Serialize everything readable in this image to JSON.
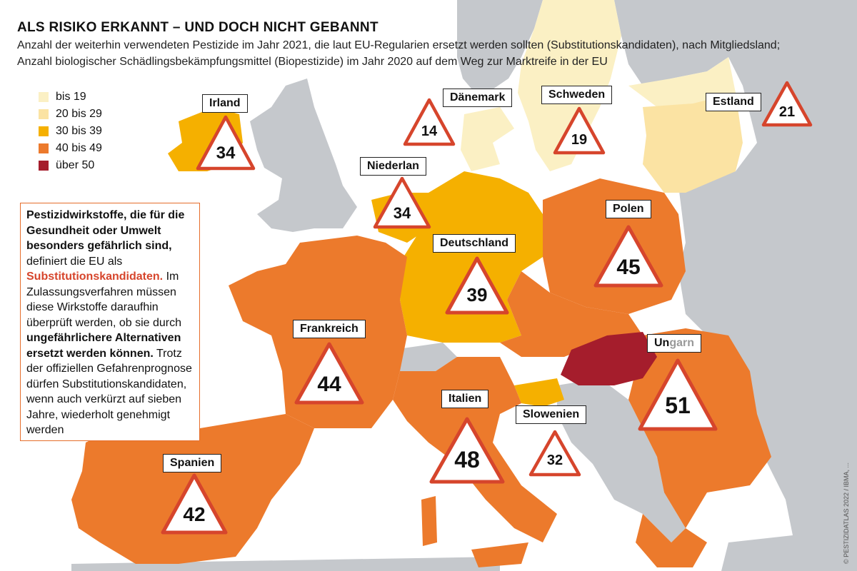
{
  "title": "ALS RISIKO ERKANNT – UND DOCH NICHT GEBANNT",
  "subtitle": "Anzahl der weiterhin verwendeten Pestizide im Jahr 2021, die laut EU-Regularien ersetzt werden sollten (Substitutionskandidaten), nach Mitgliedsland; Anzahl biologischer Schädlingsbekämpfungsmittel (Biopestizide) im Jahr 2020 auf dem Weg zur Marktreife in der EU",
  "legend": [
    {
      "label": "bis 19",
      "color": "#fbf0c4"
    },
    {
      "label": "20 bis 29",
      "color": "#fbe3a3"
    },
    {
      "label": "30 bis 39",
      "color": "#f5b000"
    },
    {
      "label": "40 bis 49",
      "color": "#ec7a2c"
    },
    {
      "label": "über 50",
      "color": "#a51d2c"
    }
  ],
  "infobox": {
    "bold_intro": "Pestizidwirkstoffe, die für die Gesundheit oder Umwelt besonders gefährlich sind,",
    "text_defines": "definiert die EU als",
    "highlight": "Substitutionskandidaten.",
    "text_procedure": "Im Zulassungsverfahren müssen diese Wirkstoffe daraufhin überprüft werden, ob sie durch",
    "bold_alternatives": "ungefährlichere Alternativen ersetzt werden können.",
    "text_end": "Trotz der offiziellen Gefahrenprognose dürfen Substitutionskandidaten, wenn auch verkürzt auf sieben Jahre, wiederholt genehmigt werden"
  },
  "countries": [
    {
      "key": "irland",
      "name": "Irland",
      "value": 34
    },
    {
      "key": "daenemark",
      "name": "Dänemark",
      "value": 14
    },
    {
      "key": "schweden",
      "name": "Schweden",
      "value": 19
    },
    {
      "key": "estland",
      "name": "Estland",
      "value": 21
    },
    {
      "key": "niederlande",
      "name": "Niederlan",
      "value": 34
    },
    {
      "key": "polen",
      "name": "Polen",
      "value": 45
    },
    {
      "key": "deutschland",
      "name": "Deutschland",
      "value": 39
    },
    {
      "key": "frankreich",
      "name": "Frankreich",
      "value": 44
    },
    {
      "key": "ungarn",
      "name_dark": "Un",
      "name_light": "garn",
      "value": 51
    },
    {
      "key": "italien",
      "name": "Italien",
      "value": 48
    },
    {
      "key": "slowenien",
      "name": "Slowenien",
      "value": 32
    },
    {
      "key": "spanien",
      "name": "Spanien",
      "value": 42
    }
  ],
  "colors": {
    "nonmember": "#c5c8cc",
    "tier_lowest": "#fbf0c4",
    "tier_low": "#fbe3a3",
    "tier_mid": "#f5b000",
    "tier_high": "#ec7a2c",
    "tier_top": "#a51d2c",
    "sign_border": "#d6452c"
  },
  "credit": "© PESTIZIDATLAS 2022 / IBMA, ..."
}
